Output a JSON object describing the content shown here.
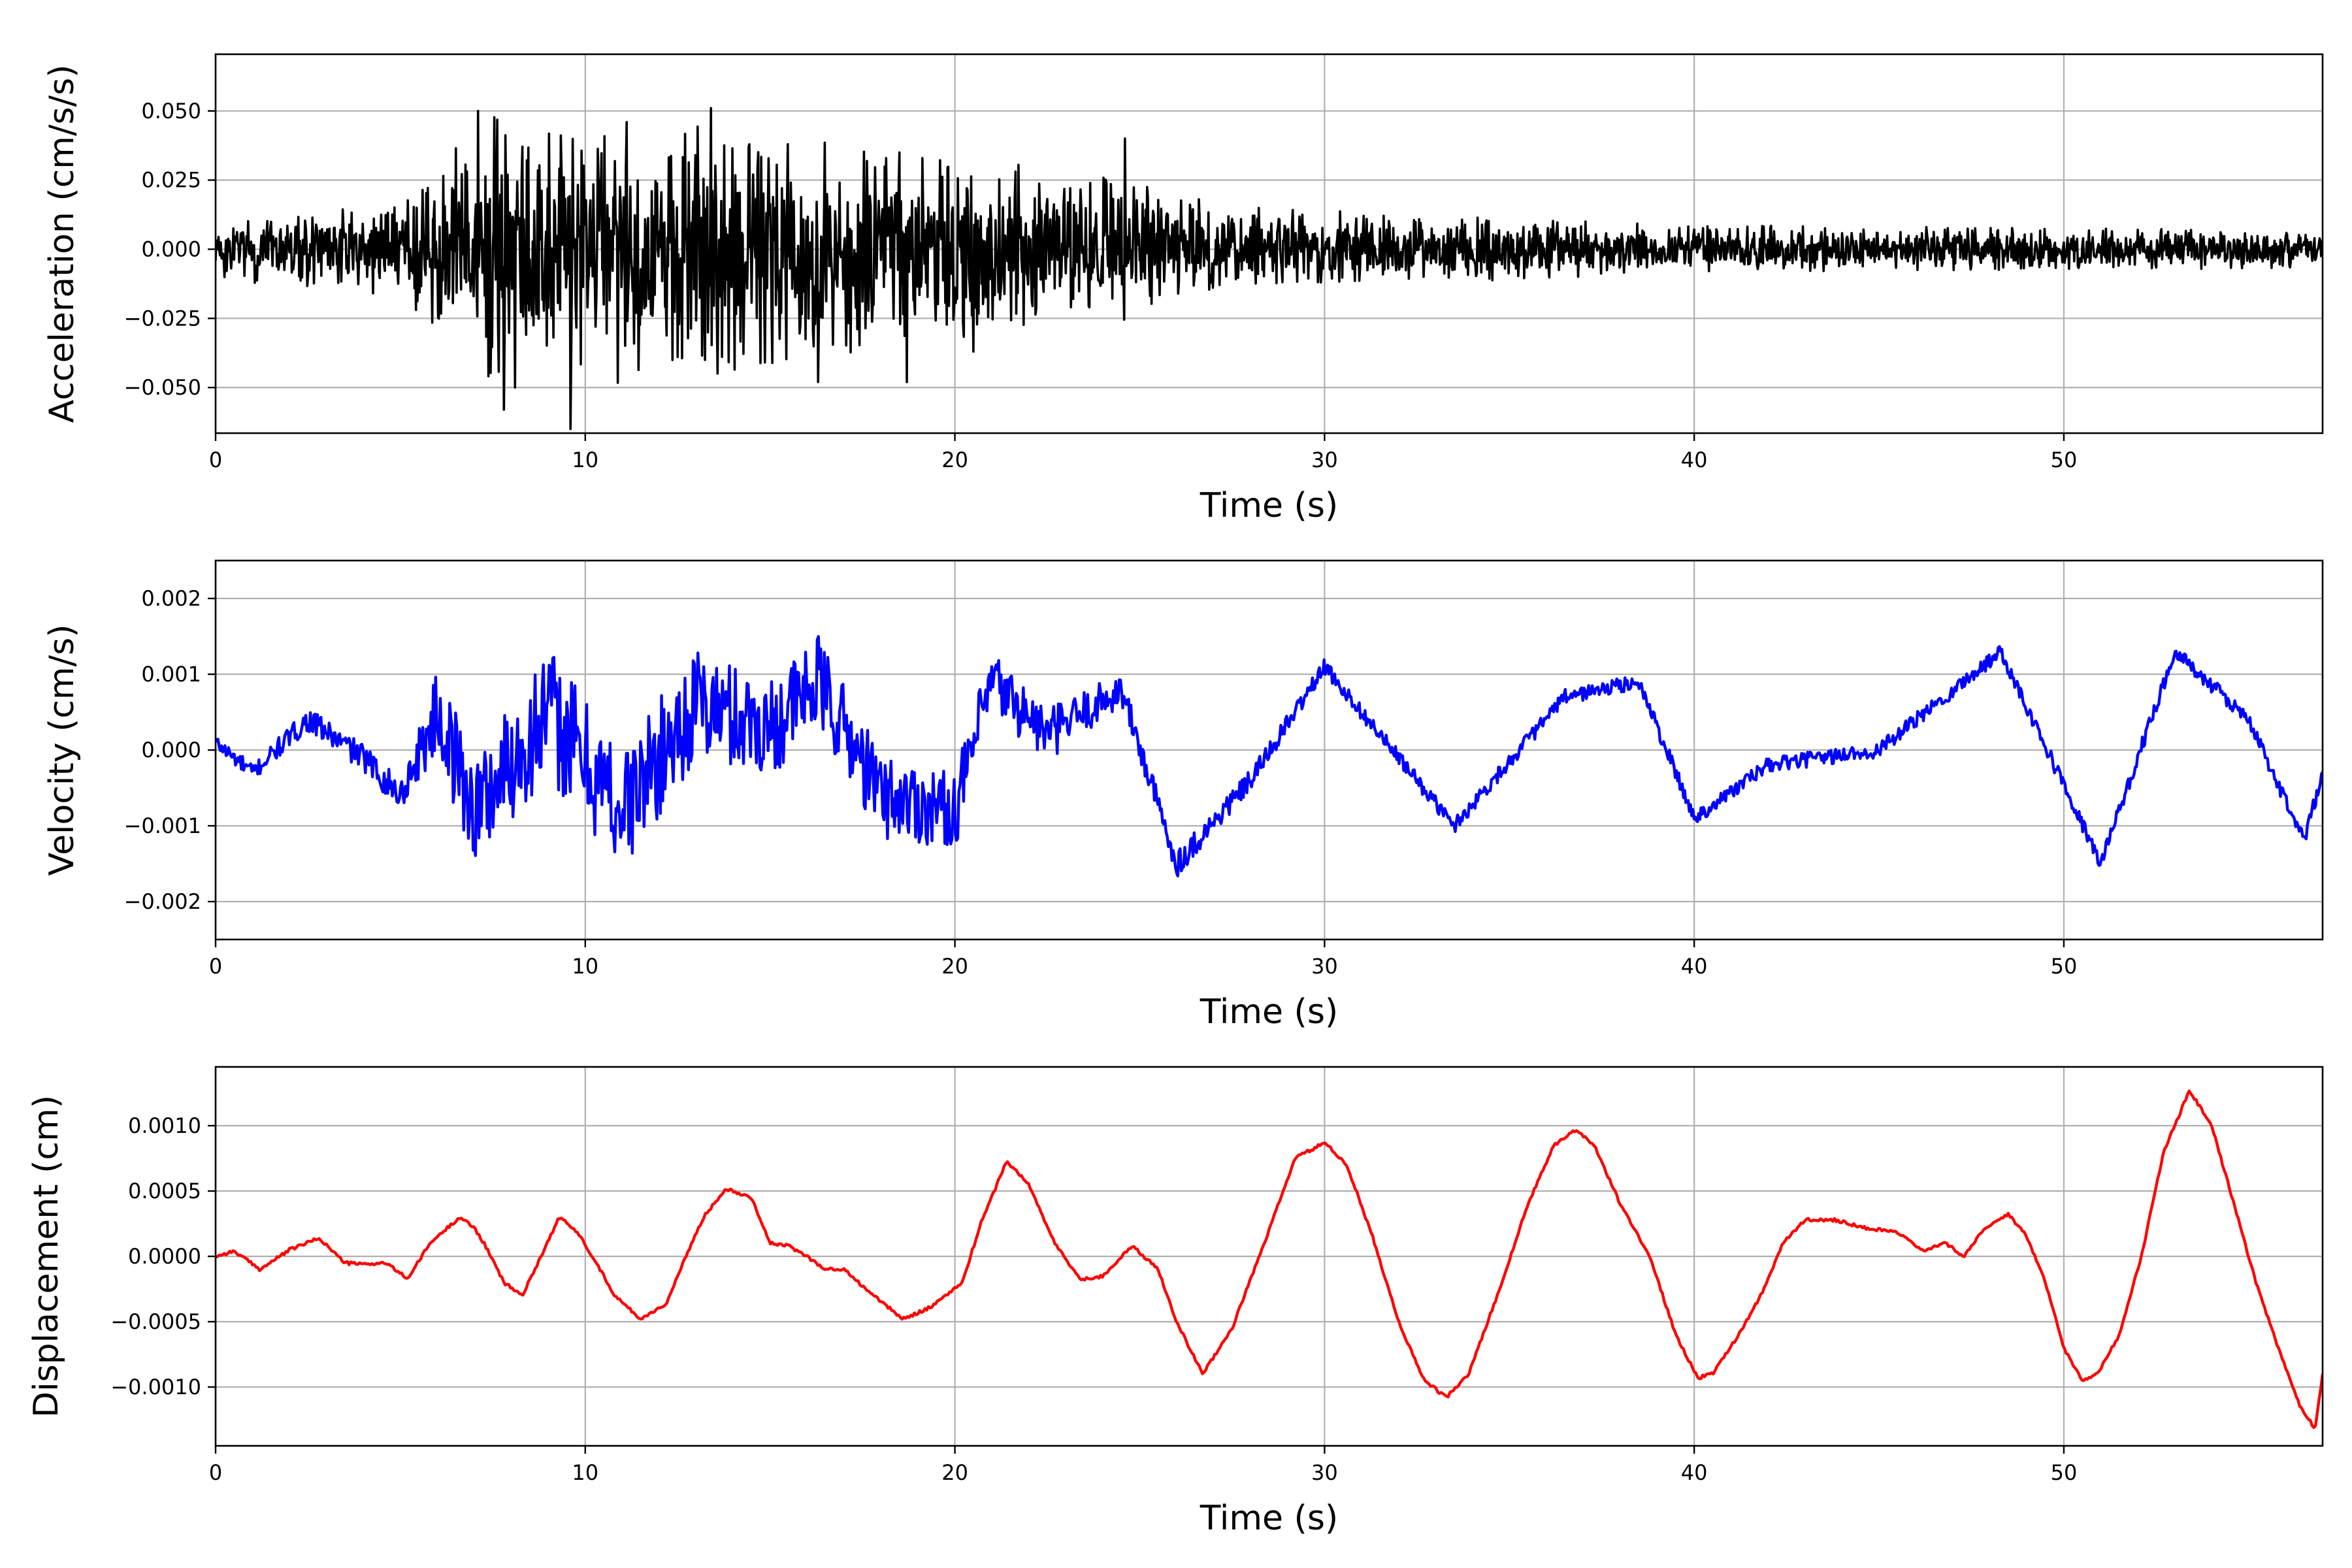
{
  "chart_data": [
    {
      "type": "line",
      "xlabel": "Time (s)",
      "ylabel": "Acceleration (cm/s/s)",
      "color": "#000000",
      "xlim": [
        0,
        57
      ],
      "ylim": [
        -0.0665,
        0.0705
      ],
      "xticks": [
        0,
        10,
        20,
        30,
        40,
        50
      ],
      "xtick_labels": [
        "0",
        "10",
        "20",
        "30",
        "40",
        "50"
      ],
      "yticks": [
        -0.05,
        -0.025,
        0.0,
        0.025,
        0.05
      ],
      "ytick_labels": [
        "−0.050",
        "−0.025",
        "0.000",
        "0.025",
        "0.050"
      ],
      "grid": true,
      "envelope": [
        [
          0,
          0.012
        ],
        [
          2,
          0.013
        ],
        [
          5,
          0.017
        ],
        [
          6,
          0.03
        ],
        [
          7.2,
          0.05
        ],
        [
          9.6,
          0.05
        ],
        [
          13.2,
          0.048
        ],
        [
          17,
          0.038
        ],
        [
          20.5,
          0.033
        ],
        [
          25,
          0.025
        ],
        [
          27,
          0.017
        ],
        [
          30,
          0.014
        ],
        [
          35,
          0.011
        ],
        [
          40,
          0.009
        ],
        [
          45,
          0.008
        ],
        [
          50,
          0.008
        ],
        [
          57,
          0.007
        ]
      ],
      "peaks": [
        [
          7.1,
          0.05
        ],
        [
          9.6,
          0.051
        ],
        [
          13.4,
          0.051
        ],
        [
          24.6,
          0.04
        ],
        [
          7.8,
          -0.058
        ],
        [
          9.6,
          -0.065
        ],
        [
          8.1,
          -0.05
        ],
        [
          16.3,
          -0.048
        ],
        [
          18.7,
          -0.048
        ],
        [
          20.5,
          -0.037
        ]
      ]
    },
    {
      "type": "line",
      "xlabel": "Time (s)",
      "ylabel": "Velocity (cm/s)",
      "color": "#0000ff",
      "xlim": [
        0,
        57
      ],
      "ylim": [
        -0.0025,
        0.0025
      ],
      "xticks": [
        0,
        10,
        20,
        30,
        40,
        50
      ],
      "xtick_labels": [
        "0",
        "10",
        "20",
        "30",
        "40",
        "50"
      ],
      "yticks": [
        -0.002,
        -0.001,
        0.0,
        0.001,
        0.002
      ],
      "ytick_labels": [
        "−0.002",
        "−0.001",
        "0.000",
        "0.001",
        "0.002"
      ],
      "grid": true,
      "baseline": [
        [
          0,
          0.0001
        ],
        [
          1,
          -0.0003
        ],
        [
          2.5,
          0.0004
        ],
        [
          4,
          -0.0001
        ],
        [
          5,
          -0.0006
        ],
        [
          6,
          0.0005
        ],
        [
          7,
          -0.0008
        ],
        [
          9,
          0.0005
        ],
        [
          11,
          -0.0008
        ],
        [
          13,
          0.0006
        ],
        [
          15,
          0.0003
        ],
        [
          16.3,
          0.0009
        ],
        [
          18,
          -0.0006
        ],
        [
          20,
          -0.0008
        ],
        [
          21,
          0.0009
        ],
        [
          22.5,
          0.0002
        ],
        [
          24.5,
          0.0008
        ],
        [
          26,
          -0.0015
        ],
        [
          28,
          -0.0004
        ],
        [
          30,
          0.0011
        ],
        [
          33.5,
          -0.001
        ],
        [
          36.5,
          0.0007
        ],
        [
          38.5,
          0.0009
        ],
        [
          40,
          -0.0009
        ],
        [
          42,
          -0.0002
        ],
        [
          45,
          0.0
        ],
        [
          48.3,
          0.0013
        ],
        [
          51,
          -0.0015
        ],
        [
          53,
          0.0013
        ],
        [
          55,
          0.0004
        ],
        [
          56.5,
          -0.0012
        ],
        [
          57,
          -0.0003
        ]
      ],
      "noise_amplitude": [
        [
          0,
          0.0001
        ],
        [
          5,
          0.0002
        ],
        [
          6.5,
          0.0007
        ],
        [
          9,
          0.0009
        ],
        [
          14,
          0.0007
        ],
        [
          20,
          0.0005
        ],
        [
          25,
          0.0002
        ],
        [
          30,
          0.0001
        ],
        [
          57,
          0.0001
        ]
      ]
    },
    {
      "type": "line",
      "xlabel": "Time (s)",
      "ylabel": "Displacement (cm)",
      "color": "#ff0000",
      "xlim": [
        0,
        57
      ],
      "ylim": [
        -0.00145,
        0.00145
      ],
      "xticks": [
        0,
        10,
        20,
        30,
        40,
        50
      ],
      "xtick_labels": [
        "0",
        "10",
        "20",
        "30",
        "40",
        "50"
      ],
      "yticks": [
        -0.001,
        -0.0005,
        0.0,
        0.0005,
        0.001
      ],
      "ytick_labels": [
        "−0.0010",
        "−0.0005",
        "0.0000",
        "0.0005",
        "0.0010"
      ],
      "grid": true,
      "x": [
        0,
        0.5,
        1.2,
        2.0,
        2.8,
        3.5,
        4.0,
        4.6,
        5.2,
        5.8,
        6.6,
        7.0,
        7.3,
        7.8,
        8.3,
        8.6,
        9.3,
        9.8,
        10.2,
        10.8,
        11.5,
        12.2,
        12.8,
        13.2,
        13.8,
        14.5,
        15.0,
        15.5,
        16.0,
        16.5,
        17.0,
        17.8,
        18.6,
        19.4,
        20.2,
        20.7,
        21.4,
        22.0,
        22.7,
        23.4,
        24.0,
        24.8,
        25.5,
        26.0,
        26.7,
        27.5,
        28.5,
        29.2,
        30.0,
        30.6,
        31.3,
        32.0,
        32.7,
        33.3,
        33.9,
        34.8,
        35.5,
        36.2,
        36.8,
        37.3,
        38.0,
        38.8,
        39.5,
        40.1,
        40.5,
        41.2,
        41.8,
        42.4,
        43.0,
        43.8,
        44.6,
        45.5,
        46.2,
        46.8,
        47.3,
        47.8,
        48.5,
        49.0,
        49.5,
        50.0,
        50.5,
        50.9,
        51.5,
        52.1,
        52.7,
        53.4,
        54.0,
        54.6,
        55.2,
        55.8,
        56.4,
        56.8,
        57.0
      ],
      "y": [
        0.0,
        4e-05,
        -0.0001,
        5e-05,
        0.00014,
        -5e-05,
        -6e-05,
        -5e-05,
        -0.00017,
        0.0001,
        0.0003,
        0.00022,
        8e-05,
        -0.0002,
        -0.0003,
        -0.00012,
        0.0003,
        0.00018,
        0.0,
        -0.0003,
        -0.00048,
        -0.00036,
        5e-05,
        0.0003,
        0.00052,
        0.00045,
        0.0001,
        8e-05,
        0.0,
        -0.0001,
        -0.0001,
        -0.0003,
        -0.00048,
        -0.00038,
        -0.0002,
        0.00025,
        0.00073,
        0.00055,
        0.0001,
        -0.00018,
        -0.00015,
        8e-05,
        -0.0001,
        -0.0005,
        -0.0009,
        -0.00055,
        0.0002,
        0.00075,
        0.00087,
        0.0007,
        0.00015,
        -0.0005,
        -0.00095,
        -0.00108,
        -0.0009,
        -0.0002,
        0.0004,
        0.00085,
        0.00097,
        0.00085,
        0.0004,
        0.0,
        -0.0006,
        -0.00093,
        -0.0009,
        -0.0006,
        -0.0003,
        0.0001,
        0.00028,
        0.00028,
        0.00022,
        0.00018,
        4e-05,
        0.0001,
        0.0,
        0.0002,
        0.00032,
        0.00015,
        -0.0002,
        -0.0007,
        -0.00095,
        -0.0009,
        -0.0006,
        0.0,
        0.0008,
        0.00127,
        0.001,
        0.0004,
        -0.0002,
        -0.0007,
        -0.00115,
        -0.00132,
        -0.0009
      ]
    }
  ]
}
